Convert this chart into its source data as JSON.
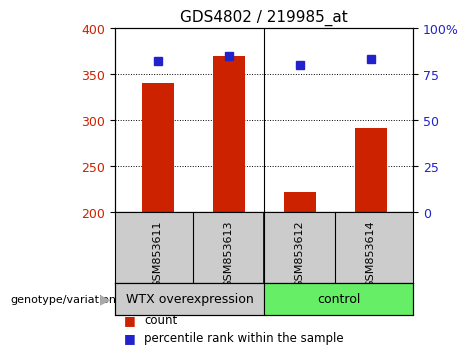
{
  "title": "GDS4802 / 219985_at",
  "samples": [
    "GSM853611",
    "GSM853613",
    "GSM853612",
    "GSM853614"
  ],
  "counts": [
    340,
    370,
    222,
    291
  ],
  "percentiles": [
    82,
    85,
    80,
    83
  ],
  "ylim_left": [
    200,
    400
  ],
  "ylim_right": [
    0,
    100
  ],
  "yticks_left": [
    200,
    250,
    300,
    350,
    400
  ],
  "yticks_right": [
    0,
    25,
    50,
    75,
    100
  ],
  "bar_color": "#cc2200",
  "square_color": "#2222cc",
  "groups": [
    {
      "label": "WTX overexpression",
      "color": "#cccccc"
    },
    {
      "label": "control",
      "color": "#66ee66"
    }
  ],
  "group_label": "genotype/variation",
  "legend_count_label": "count",
  "legend_percentile_label": "percentile rank within the sample",
  "background_color": "#ffffff",
  "title_fontsize": 11,
  "tick_fontsize": 9,
  "sample_fontsize": 8,
  "group_fontsize": 9,
  "legend_fontsize": 8.5,
  "group_arrow_color": "#aaaaaa"
}
